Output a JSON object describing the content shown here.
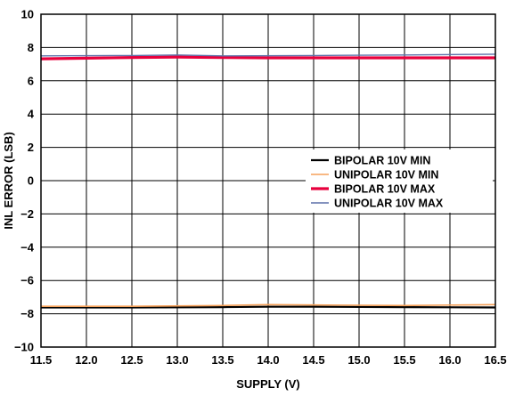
{
  "chart_data": {
    "type": "line",
    "xlabel": "SUPPLY (V)",
    "ylabel": "INL ERROR (LSB)",
    "xlim": [
      11.5,
      16.5
    ],
    "ylim": [
      -10,
      10
    ],
    "x_ticks": [
      "11.5",
      "12.0",
      "12.5",
      "13.0",
      "13.5",
      "14.0",
      "14.5",
      "15.0",
      "15.5",
      "16.0",
      "16.5"
    ],
    "y_ticks": [
      "10",
      "8",
      "6",
      "4",
      "2",
      "0",
      "−2",
      "−4",
      "−6",
      "−8",
      "−10"
    ],
    "grid": true,
    "legend_position": "right-middle",
    "series": [
      {
        "name": "BIPOLAR 10V MIN",
        "color": "#000000",
        "x": [
          11.5,
          12.5,
          13.5,
          14.0,
          14.5,
          15.5,
          16.5
        ],
        "values": [
          -7.62,
          -7.62,
          -7.6,
          -7.58,
          -7.58,
          -7.6,
          -7.62
        ]
      },
      {
        "name": "UNIPOLAR 10V MIN",
        "color": "#f5a15a",
        "x": [
          11.5,
          12.5,
          13.5,
          14.0,
          14.5,
          15.5,
          16.5
        ],
        "values": [
          -7.55,
          -7.55,
          -7.5,
          -7.45,
          -7.47,
          -7.5,
          -7.45
        ]
      },
      {
        "name": "BIPOLAR 10V MAX",
        "color": "#e8003d",
        "x": [
          11.5,
          12.0,
          12.5,
          13.0,
          13.5,
          14.0,
          15.0,
          16.0,
          16.5
        ],
        "values": [
          7.32,
          7.36,
          7.4,
          7.43,
          7.4,
          7.38,
          7.38,
          7.38,
          7.38
        ]
      },
      {
        "name": "UNIPOLAR 10V MAX",
        "color": "#5b6fa8",
        "x": [
          11.5,
          12.5,
          13.0,
          13.5,
          14.5,
          15.5,
          16.5
        ],
        "values": [
          7.5,
          7.52,
          7.55,
          7.5,
          7.52,
          7.55,
          7.6
        ]
      }
    ]
  }
}
